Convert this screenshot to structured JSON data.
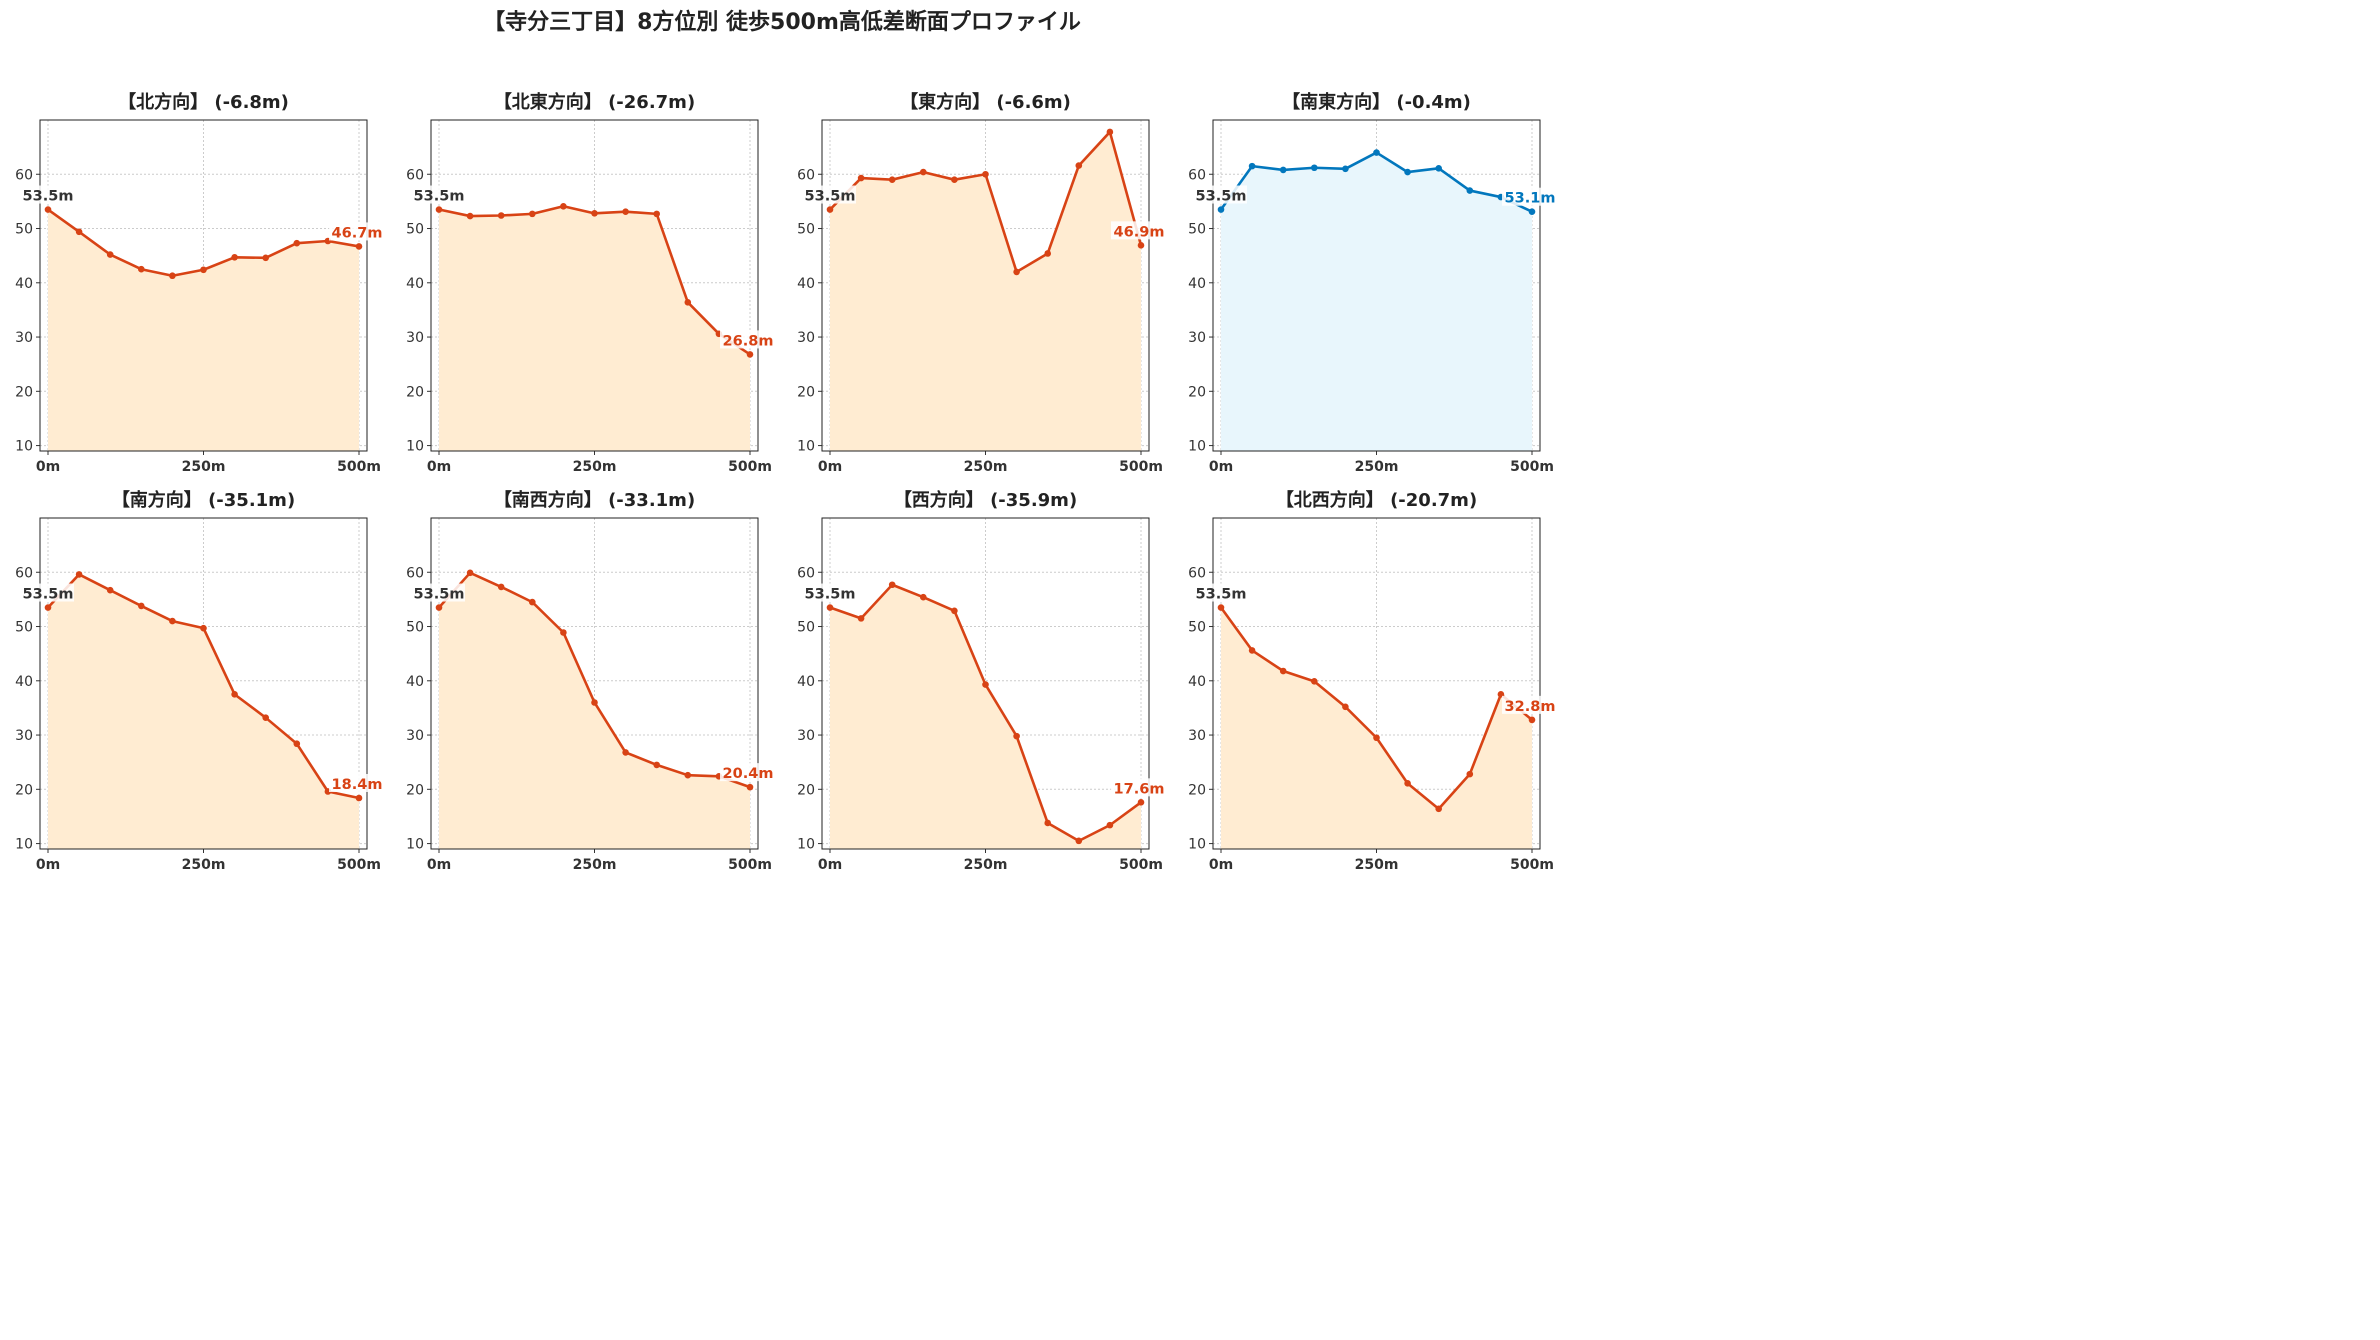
{
  "title": "【寺分三丁目】8方位別 徒歩500m高低差断面プロファイル",
  "colors": {
    "down": "#d84315",
    "up": "#0277bd",
    "fill_down": "#ffecd2",
    "fill_up": "#e8f6fc",
    "start_label": "#333333"
  },
  "chart_data": [
    {
      "type": "area",
      "title": "【北方向】 (-6.8m)",
      "trend": "down",
      "x": [
        0,
        50,
        100,
        150,
        200,
        250,
        300,
        350,
        400,
        450,
        500
      ],
      "values": [
        53.5,
        49.4,
        45.2,
        42.5,
        41.3,
        42.4,
        44.7,
        44.6,
        47.3,
        47.7,
        46.7
      ],
      "start_label": "53.5m",
      "end_label": "46.7m",
      "ylim": [
        9,
        70
      ],
      "yticks": [
        10,
        20,
        30,
        40,
        50,
        60
      ],
      "xticks": [
        "0m",
        "250m",
        "500m"
      ],
      "grid": true
    },
    {
      "type": "area",
      "title": "【北東方向】 (-26.7m)",
      "trend": "down",
      "x": [
        0,
        50,
        100,
        150,
        200,
        250,
        300,
        350,
        400,
        450,
        500
      ],
      "values": [
        53.5,
        52.3,
        52.4,
        52.7,
        54.1,
        52.8,
        53.1,
        52.7,
        36.4,
        30.6,
        26.8
      ],
      "start_label": "53.5m",
      "end_label": "26.8m",
      "ylim": [
        9,
        70
      ],
      "yticks": [
        10,
        20,
        30,
        40,
        50,
        60
      ],
      "xticks": [
        "0m",
        "250m",
        "500m"
      ],
      "grid": true
    },
    {
      "type": "area",
      "title": "【東方向】 (-6.6m)",
      "trend": "down",
      "x": [
        0,
        50,
        100,
        150,
        200,
        250,
        300,
        350,
        400,
        450,
        500
      ],
      "values": [
        53.5,
        59.3,
        59.0,
        60.4,
        59.0,
        60.0,
        42.0,
        45.4,
        61.6,
        67.8,
        46.9
      ],
      "start_label": "53.5m",
      "end_label": "46.9m",
      "ylim": [
        9,
        70
      ],
      "yticks": [
        10,
        20,
        30,
        40,
        50,
        60
      ],
      "xticks": [
        "0m",
        "250m",
        "500m"
      ],
      "grid": true
    },
    {
      "type": "area",
      "title": "【南東方向】 (-0.4m)",
      "trend": "up",
      "x": [
        0,
        50,
        100,
        150,
        200,
        250,
        300,
        350,
        400,
        450,
        500
      ],
      "values": [
        53.5,
        61.5,
        60.8,
        61.2,
        61.0,
        64.0,
        60.4,
        61.1,
        57.0,
        55.8,
        53.1
      ],
      "start_label": "53.5m",
      "end_label": "53.1m",
      "ylim": [
        9,
        70
      ],
      "yticks": [
        10,
        20,
        30,
        40,
        50,
        60
      ],
      "xticks": [
        "0m",
        "250m",
        "500m"
      ],
      "grid": true
    },
    {
      "type": "area",
      "title": "【南方向】 (-35.1m)",
      "trend": "down",
      "x": [
        0,
        50,
        100,
        150,
        200,
        250,
        300,
        350,
        400,
        450,
        500
      ],
      "values": [
        53.5,
        59.6,
        56.7,
        53.8,
        51.0,
        49.7,
        37.5,
        33.2,
        28.4,
        19.6,
        18.4
      ],
      "start_label": "53.5m",
      "end_label": "18.4m",
      "ylim": [
        9,
        70
      ],
      "yticks": [
        10,
        20,
        30,
        40,
        50,
        60
      ],
      "xticks": [
        "0m",
        "250m",
        "500m"
      ],
      "grid": true
    },
    {
      "type": "area",
      "title": "【南西方向】 (-33.1m)",
      "trend": "down",
      "x": [
        0,
        50,
        100,
        150,
        200,
        250,
        300,
        350,
        400,
        450,
        500
      ],
      "values": [
        53.5,
        59.9,
        57.3,
        54.5,
        48.9,
        36.0,
        26.8,
        24.5,
        22.6,
        22.4,
        20.4
      ],
      "start_label": "53.5m",
      "end_label": "20.4m",
      "ylim": [
        9,
        70
      ],
      "yticks": [
        10,
        20,
        30,
        40,
        50,
        60
      ],
      "xticks": [
        "0m",
        "250m",
        "500m"
      ],
      "grid": true
    },
    {
      "type": "area",
      "title": "【西方向】 (-35.9m)",
      "trend": "down",
      "x": [
        0,
        50,
        100,
        150,
        200,
        250,
        300,
        350,
        400,
        450,
        500
      ],
      "values": [
        53.5,
        51.5,
        57.7,
        55.4,
        52.9,
        39.3,
        29.8,
        13.8,
        10.5,
        13.4,
        17.6
      ],
      "start_label": "53.5m",
      "end_label": "17.6m",
      "ylim": [
        9,
        70
      ],
      "yticks": [
        10,
        20,
        30,
        40,
        50,
        60
      ],
      "xticks": [
        "0m",
        "250m",
        "500m"
      ],
      "grid": true
    },
    {
      "type": "area",
      "title": "【北西方向】 (-20.7m)",
      "trend": "down",
      "x": [
        0,
        50,
        100,
        150,
        200,
        250,
        300,
        350,
        400,
        450,
        500
      ],
      "values": [
        53.5,
        45.6,
        41.8,
        39.9,
        35.2,
        29.5,
        21.1,
        16.4,
        22.8,
        37.5,
        32.8
      ],
      "start_label": "53.5m",
      "end_label": "32.8m",
      "ylim": [
        9,
        70
      ],
      "yticks": [
        10,
        20,
        30,
        40,
        50,
        60
      ],
      "xticks": [
        "0m",
        "250m",
        "500m"
      ],
      "grid": true
    }
  ]
}
